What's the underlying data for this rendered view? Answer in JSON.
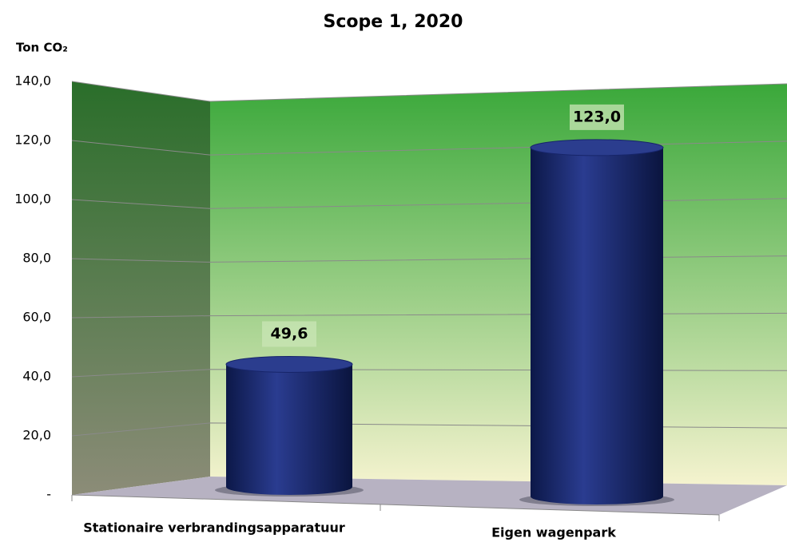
{
  "chart_data": {
    "type": "bar",
    "title": "Scope 1, 2020",
    "y_label": "Ton CO₂",
    "categories": [
      "Stationaire verbrandingsapparatuur",
      "Eigen wagenpark"
    ],
    "values": [
      49.6,
      123.0
    ],
    "value_labels": [
      "49,6",
      "123,0"
    ],
    "color": "#1a2a6e",
    "ylim": [
      0,
      140
    ],
    "yticks": [
      {
        "value": 0,
        "label": "-"
      },
      {
        "value": 20,
        "label": "20,0"
      },
      {
        "value": 40,
        "label": "40,0"
      },
      {
        "value": 60,
        "label": "60,0"
      },
      {
        "value": 80,
        "label": "80,0"
      },
      {
        "value": 100,
        "label": "100,0"
      },
      {
        "value": 120,
        "label": "120,0"
      },
      {
        "value": 140,
        "label": "140,0"
      }
    ],
    "grid": true
  }
}
